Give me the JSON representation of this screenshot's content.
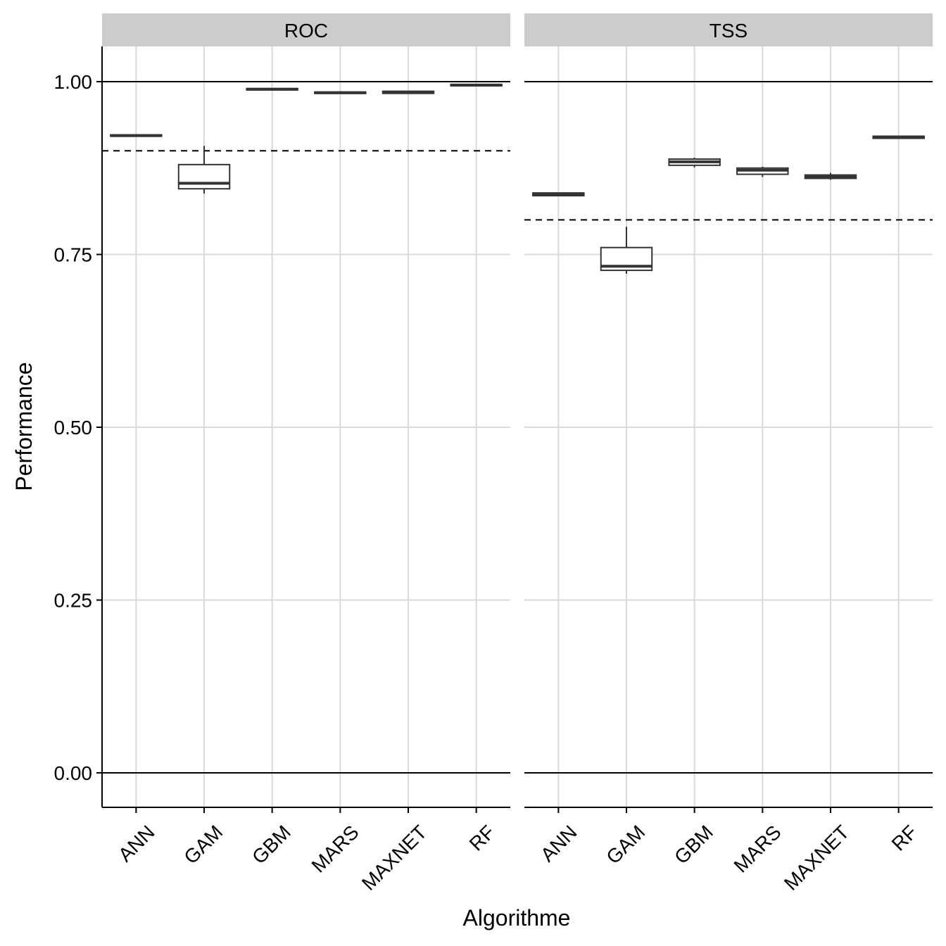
{
  "chart_data": {
    "type": "boxplot",
    "xlabel": "Algorithme",
    "ylabel": "Performance",
    "ylim": [
      -0.05,
      1.05
    ],
    "yticks": [
      0.0,
      0.25,
      0.5,
      0.75,
      1.0
    ],
    "ytick_labels": [
      "0.00",
      "0.25",
      "0.50",
      "0.75",
      "1.00"
    ],
    "categories": [
      "ANN",
      "GAM",
      "GBM",
      "MARS",
      "MAXNET",
      "RF"
    ],
    "reference_lines": [
      0.0,
      1.0
    ],
    "grid": true,
    "legend": "none",
    "facets": [
      {
        "label": "ROC",
        "threshold": 0.9,
        "boxes": [
          {
            "category": "ANN",
            "min": 0.921,
            "q1": 0.921,
            "median": 0.922,
            "q3": 0.923,
            "max": 0.923
          },
          {
            "category": "GAM",
            "min": 0.838,
            "q1": 0.845,
            "median": 0.853,
            "q3": 0.88,
            "max": 0.907
          },
          {
            "category": "GBM",
            "min": 0.988,
            "q1": 0.988,
            "median": 0.989,
            "q3": 0.99,
            "max": 0.99
          },
          {
            "category": "MARS",
            "min": 0.983,
            "q1": 0.983,
            "median": 0.984,
            "q3": 0.985,
            "max": 0.986
          },
          {
            "category": "MAXNET",
            "min": 0.983,
            "q1": 0.983,
            "median": 0.985,
            "q3": 0.986,
            "max": 0.986
          },
          {
            "category": "RF",
            "min": 0.994,
            "q1": 0.994,
            "median": 0.995,
            "q3": 0.996,
            "max": 0.996
          }
        ]
      },
      {
        "label": "TSS",
        "threshold": 0.8,
        "boxes": [
          {
            "category": "ANN",
            "min": 0.835,
            "q1": 0.835,
            "median": 0.837,
            "q3": 0.839,
            "max": 0.839
          },
          {
            "category": "GAM",
            "min": 0.722,
            "q1": 0.727,
            "median": 0.733,
            "q3": 0.76,
            "max": 0.79
          },
          {
            "category": "GBM",
            "min": 0.876,
            "q1": 0.879,
            "median": 0.884,
            "q3": 0.888,
            "max": 0.89
          },
          {
            "category": "MARS",
            "min": 0.862,
            "q1": 0.866,
            "median": 0.872,
            "q3": 0.875,
            "max": 0.877
          },
          {
            "category": "MAXNET",
            "min": 0.858,
            "q1": 0.86,
            "median": 0.862,
            "q3": 0.865,
            "max": 0.868
          },
          {
            "category": "RF",
            "min": 0.917,
            "q1": 0.918,
            "median": 0.92,
            "q3": 0.921,
            "max": 0.922
          }
        ]
      }
    ]
  }
}
